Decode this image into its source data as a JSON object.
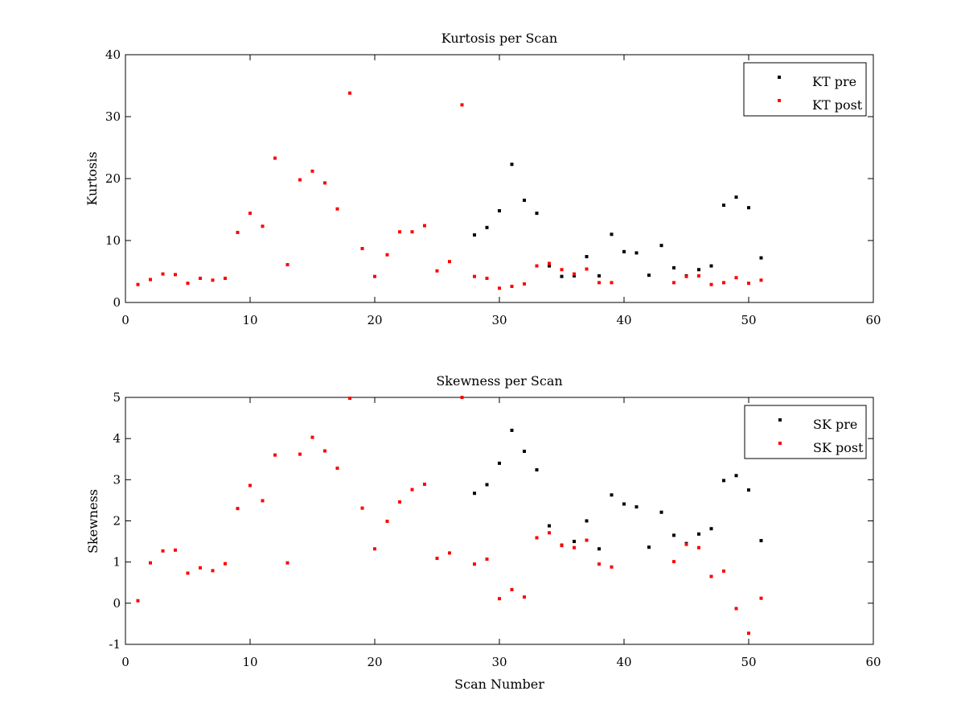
{
  "chart_data": [
    {
      "type": "scatter",
      "title": "Kurtosis per Scan",
      "xlabel": "",
      "ylabel": "Kurtosis",
      "xlim": [
        0,
        60
      ],
      "ylim": [
        0,
        40
      ],
      "xticks": [
        0,
        10,
        20,
        30,
        40,
        50,
        60
      ],
      "yticks": [
        0,
        10,
        20,
        30,
        40
      ],
      "xtick_labels": [
        "0",
        "10",
        "20",
        "30",
        "40",
        "50",
        "60"
      ],
      "ytick_labels": [
        "0",
        "10",
        "20",
        "30",
        "40"
      ],
      "grid": false,
      "legend_position": "top-right",
      "series": [
        {
          "name": "KT pre",
          "color": "#000000",
          "x": [
            28,
            29,
            30,
            31,
            32,
            33,
            34,
            35,
            36,
            37,
            38,
            39,
            40,
            41,
            42,
            43,
            44,
            45,
            46,
            47,
            48,
            49,
            50,
            51
          ],
          "y": [
            10.9,
            12.1,
            14.8,
            22.3,
            16.5,
            14.4,
            5.9,
            4.2,
            4.3,
            7.4,
            4.3,
            11.0,
            8.2,
            8.0,
            4.4,
            9.2,
            5.6,
            4.3,
            5.3,
            5.9,
            15.7,
            17.0,
            15.3,
            7.2
          ]
        },
        {
          "name": "KT post",
          "color": "#ff0000",
          "x": [
            1,
            2,
            3,
            4,
            5,
            6,
            7,
            8,
            9,
            10,
            11,
            12,
            13,
            14,
            15,
            16,
            17,
            18,
            19,
            20,
            21,
            22,
            23,
            24,
            25,
            26,
            27,
            28,
            29,
            30,
            31,
            32,
            33,
            34,
            35,
            36,
            37,
            38,
            39,
            44,
            45,
            46,
            47,
            48,
            49,
            50,
            51
          ],
          "y": [
            2.9,
            3.7,
            4.6,
            4.5,
            3.1,
            3.9,
            3.6,
            3.9,
            11.3,
            14.4,
            12.3,
            23.3,
            6.1,
            19.8,
            21.2,
            19.3,
            15.1,
            33.8,
            8.7,
            4.2,
            7.7,
            11.4,
            11.4,
            12.4,
            5.1,
            6.6,
            31.9,
            4.2,
            3.9,
            2.3,
            2.6,
            3.0,
            5.9,
            6.3,
            5.3,
            4.6,
            5.4,
            3.2,
            3.2,
            3.2,
            4.2,
            4.3,
            2.9,
            3.2,
            4.0,
            3.1,
            3.6
          ]
        }
      ]
    },
    {
      "type": "scatter",
      "title": "Skewness per Scan",
      "xlabel": "Scan Number",
      "ylabel": "Skewness",
      "xlim": [
        0,
        60
      ],
      "ylim": [
        -1,
        5
      ],
      "xticks": [
        0,
        10,
        20,
        30,
        40,
        50,
        60
      ],
      "yticks": [
        -1,
        0,
        1,
        2,
        3,
        4,
        5
      ],
      "xtick_labels": [
        "0",
        "10",
        "20",
        "30",
        "40",
        "50",
        "60"
      ],
      "ytick_labels": [
        "-1",
        "0",
        "1",
        "2",
        "3",
        "4",
        "5"
      ],
      "grid": false,
      "legend_position": "top-right",
      "series": [
        {
          "name": "SK pre",
          "color": "#000000",
          "x": [
            28,
            29,
            30,
            31,
            32,
            33,
            34,
            35,
            36,
            37,
            38,
            39,
            40,
            41,
            42,
            43,
            44,
            45,
            46,
            47,
            48,
            49,
            50,
            51
          ],
          "y": [
            2.67,
            2.88,
            3.4,
            4.2,
            3.69,
            3.24,
            1.88,
            1.41,
            1.5,
            2.0,
            1.32,
            2.63,
            2.41,
            2.34,
            1.36,
            2.21,
            1.65,
            1.45,
            1.68,
            1.81,
            2.98,
            3.1,
            2.75,
            1.52
          ]
        },
        {
          "name": "SK post",
          "color": "#ff0000",
          "x": [
            1,
            2,
            3,
            4,
            5,
            6,
            7,
            8,
            9,
            10,
            11,
            12,
            13,
            14,
            15,
            16,
            17,
            18,
            19,
            20,
            21,
            22,
            23,
            24,
            25,
            26,
            27,
            28,
            29,
            30,
            31,
            32,
            33,
            34,
            35,
            36,
            37,
            38,
            39,
            44,
            45,
            46,
            47,
            48,
            49,
            50,
            51
          ],
          "y": [
            0.06,
            0.98,
            1.27,
            1.29,
            0.73,
            0.86,
            0.79,
            0.96,
            2.3,
            2.86,
            2.49,
            3.6,
            0.98,
            3.62,
            4.03,
            3.7,
            3.28,
            4.98,
            2.31,
            1.32,
            1.99,
            2.46,
            2.76,
            2.89,
            1.09,
            1.22,
            5.0,
            0.95,
            1.07,
            0.11,
            0.33,
            0.15,
            1.59,
            1.71,
            1.4,
            1.35,
            1.53,
            0.95,
            0.88,
            1.01,
            1.43,
            1.35,
            0.65,
            0.78,
            -0.13,
            -0.73,
            0.12
          ]
        }
      ]
    }
  ]
}
